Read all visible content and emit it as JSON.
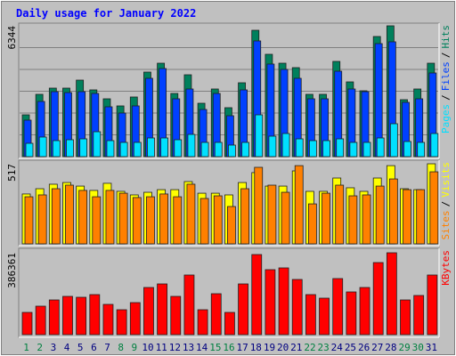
{
  "title": "Daily usage for January 2022",
  "legend_separator": "/",
  "categories": [
    "1",
    "2",
    "3",
    "4",
    "5",
    "6",
    "7",
    "8",
    "9",
    "10",
    "11",
    "12",
    "13",
    "14",
    "15",
    "16",
    "17",
    "18",
    "19",
    "20",
    "21",
    "22",
    "23",
    "24",
    "25",
    "26",
    "27",
    "28",
    "29",
    "30",
    "31"
  ],
  "category_label_colors": [
    "#008040",
    "#008040",
    "#000080",
    "#000080",
    "#000080",
    "#000080",
    "#000080",
    "#008040",
    "#008040",
    "#000080",
    "#000080",
    "#000080",
    "#000080",
    "#000080",
    "#008040",
    "#008040",
    "#000080",
    "#000080",
    "#000080",
    "#000080",
    "#000080",
    "#008040",
    "#008040",
    "#000080",
    "#000080",
    "#000080",
    "#000080",
    "#000080",
    "#008040",
    "#008040",
    "#000080"
  ],
  "chart_data": [
    {
      "type": "bar",
      "ylim": [
        0,
        6344
      ],
      "yticks": [
        6344
      ],
      "series": [
        {
          "name": "Hits",
          "color": "#00805c",
          "values": [
            2028,
            3021,
            3323,
            3323,
            3711,
            3237,
            2805,
            2460,
            2892,
            4100,
            4531,
            3064,
            3970,
            2589,
            3280,
            2374,
            3582,
            6128,
            4963,
            4531,
            4316,
            3021,
            3021,
            4618,
            3625,
            3194,
            5826,
            6344,
            2762,
            3280,
            4531
          ]
        },
        {
          "name": "Files",
          "color": "#0040ff",
          "values": [
            1770,
            2676,
            3151,
            3107,
            3151,
            3064,
            2417,
            2115,
            2460,
            3798,
            4273,
            2805,
            3280,
            2287,
            3064,
            1985,
            3237,
            5611,
            4489,
            4230,
            3798,
            2805,
            2805,
            4143,
            3280,
            3151,
            5481,
            5568,
            2633,
            2805,
            4057
          ]
        },
        {
          "name": "Pages",
          "color": "#00e0ff",
          "values": [
            647,
            950,
            777,
            820,
            863,
            1208,
            777,
            691,
            691,
            906,
            906,
            820,
            1079,
            691,
            691,
            561,
            691,
            2028,
            993,
            1122,
            863,
            777,
            777,
            863,
            691,
            691,
            906,
            1597,
            734,
            691,
            1122
          ]
        }
      ]
    },
    {
      "type": "bar",
      "ylim": [
        0,
        517
      ],
      "yticks": [
        517
      ],
      "series": [
        {
          "name": "Visits",
          "color": "#ffff00",
          "values": [
            322,
            356,
            385,
            396,
            373,
            345,
            391,
            339,
            316,
            333,
            350,
            350,
            402,
            327,
            327,
            316,
            396,
            460,
            373,
            373,
            471,
            339,
            339,
            425,
            362,
            339,
            425,
            505,
            356,
            350,
            517
          ]
        },
        {
          "name": "Sites",
          "color": "#ff8000",
          "values": [
            304,
            316,
            356,
            379,
            345,
            304,
            345,
            327,
            299,
            304,
            322,
            304,
            385,
            293,
            310,
            241,
            356,
            494,
            379,
            333,
            505,
            258,
            327,
            379,
            310,
            316,
            373,
            419,
            350,
            350,
            465
          ]
        }
      ]
    },
    {
      "type": "bar",
      "ylim": [
        0,
        386361
      ],
      "yticks": [
        386361
      ],
      "series": [
        {
          "name": "KBytes",
          "color": "#ff0000",
          "values": [
            104990,
            134387,
            163784,
            180583,
            176383,
            188982,
            142786,
            117589,
            151186,
            222579,
            239377,
            180583,
            281373,
            117589,
            193182,
            104990,
            239377,
            377964,
            306571,
            314970,
            260375,
            188982,
            172184,
            264575,
            201581,
            222579,
            340168,
            386361,
            163784,
            184782,
            281373
          ]
        }
      ]
    }
  ]
}
